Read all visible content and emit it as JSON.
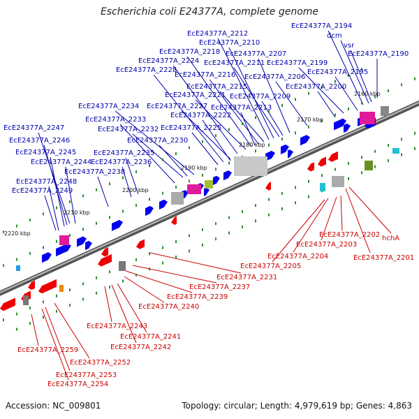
{
  "title": "Escherichia coli E24377A, complete genome",
  "footer": {
    "accession": "Accession: NC_009801",
    "summary": "Topology: circular; Length: 4,979,619 bp; Genes: 4,863"
  },
  "colors": {
    "forward_label": "#0000aa",
    "reverse_label": "#cc0000",
    "forward_gene": "#0000ee",
    "reverse_gene": "#ee0000",
    "backbone": "#888888",
    "tick": "#2e8b2e"
  },
  "scale": {
    "labels": [
      "2160 kbp",
      "2170 kbp",
      "2180 kbp",
      "2190 kbp",
      "2200 kbp",
      "2210 kbp",
      "2220 kbp"
    ]
  },
  "forward_labels": [
    "EcE24377A_2194",
    "dcm",
    "vsr",
    "EcE24377A_2190",
    "EcE24377A_2212",
    "EcE24377A_2210",
    "EcE24377A_2218",
    "EcE24377A_2207",
    "EcE24377A_2224",
    "EcE24377A_2211",
    "EcE24377A_2199",
    "EcE24377A_2195",
    "EcE24377A_2228",
    "EcE24377A_2216",
    "EcE24377A_2206",
    "EcE24377A_2215",
    "EcE24377A_2200",
    "EcE24377A_2221",
    "EcE24377A_2209",
    "EcE24377A_2234",
    "EcE24377A_2227",
    "EcE24377A_2213",
    "EcE24377A_2222",
    "EcE24377A_2233",
    "EcE24377A_2247",
    "EcE24377A_2225",
    "EcE24377A_2232",
    "EcE24377A_2246",
    "EcE24377A_2230",
    "EcE24377A_2245",
    "EcE24377A_2235",
    "EcE24377A_2244",
    "EcE24377A_2236",
    "EcE24377A_2238",
    "EcE24377A_2248",
    "EcE24377A_2249"
  ],
  "reverse_labels": [
    "EcE24377A_2202",
    "hchA",
    "EcE24377A_2203",
    "EcE24377A_2204",
    "EcE24377A_2201",
    "EcE24377A_2205",
    "EcE24377A_2231",
    "EcE24377A_2237",
    "EcE24377A_2239",
    "EcE24377A_2240",
    "EcE24377A_2243",
    "EcE24377A_2241",
    "EcE24377A_2242",
    "EcE24377A_2259",
    "EcE24377A_2252",
    "EcE24377A_2253",
    "EcE24377A_2254"
  ]
}
